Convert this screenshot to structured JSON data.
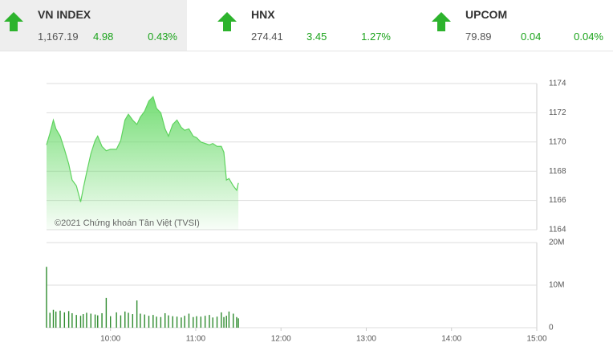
{
  "header": {
    "indices": [
      {
        "name": "VN INDEX",
        "value": "1,167.19",
        "change": "4.98",
        "percent": "0.43%"
      },
      {
        "name": "HNX",
        "value": "274.41",
        "change": "3.45",
        "percent": "1.27%"
      },
      {
        "name": "UPCOM",
        "value": "79.89",
        "change": "0.04",
        "percent": "0.04%"
      }
    ]
  },
  "chart_data": [
    {
      "type": "area",
      "color": "#5fd35f",
      "annotation": "©2021 Chứng khoán Tân Việt (TVSI)",
      "x": [
        9.25,
        9.29,
        9.33,
        9.36,
        9.41,
        9.46,
        9.51,
        9.55,
        9.6,
        9.65,
        9.68,
        9.72,
        9.77,
        9.82,
        9.85,
        9.9,
        9.95,
        10.0,
        10.07,
        10.12,
        10.17,
        10.21,
        10.26,
        10.31,
        10.35,
        10.4,
        10.45,
        10.5,
        10.54,
        10.59,
        10.64,
        10.68,
        10.73,
        10.78,
        10.83,
        10.87,
        10.92,
        10.97,
        11.01,
        11.06,
        11.11,
        11.16,
        11.2,
        11.25,
        11.3,
        11.33,
        11.36,
        11.39,
        11.44,
        11.48,
        11.5
      ],
      "values": [
        1169.8,
        1170.6,
        1171.5,
        1170.9,
        1170.4,
        1169.5,
        1168.5,
        1167.4,
        1167.0,
        1165.9,
        1166.8,
        1167.9,
        1169.2,
        1170.1,
        1170.4,
        1169.7,
        1169.4,
        1169.5,
        1169.5,
        1170.1,
        1171.5,
        1171.9,
        1171.5,
        1171.2,
        1171.7,
        1172.1,
        1172.8,
        1173.1,
        1172.3,
        1172.0,
        1170.9,
        1170.4,
        1171.2,
        1171.5,
        1171.0,
        1170.8,
        1170.9,
        1170.4,
        1170.3,
        1170.0,
        1169.9,
        1169.8,
        1169.9,
        1169.7,
        1169.7,
        1169.3,
        1167.4,
        1167.5,
        1167.0,
        1166.7,
        1167.2
      ],
      "xlim": [
        9.25,
        15
      ],
      "ylim": [
        1164,
        1174
      ],
      "yticks": [
        1164,
        1166,
        1168,
        1170,
        1172,
        1174
      ],
      "grid": true
    },
    {
      "type": "bar",
      "color": "#2e8b2e",
      "x": [
        9.25,
        9.29,
        9.33,
        9.36,
        9.41,
        9.46,
        9.51,
        9.55,
        9.6,
        9.65,
        9.68,
        9.72,
        9.77,
        9.82,
        9.85,
        9.9,
        9.95,
        10.0,
        10.07,
        10.12,
        10.17,
        10.21,
        10.26,
        10.31,
        10.35,
        10.4,
        10.45,
        10.5,
        10.54,
        10.59,
        10.64,
        10.68,
        10.73,
        10.78,
        10.83,
        10.87,
        10.92,
        10.97,
        11.01,
        11.06,
        11.11,
        11.16,
        11.2,
        11.25,
        11.3,
        11.33,
        11.36,
        11.39,
        11.44,
        11.48,
        11.5
      ],
      "values": [
        14300000,
        3500000,
        4200000,
        3800000,
        4000000,
        3600000,
        3900000,
        3400000,
        3000000,
        2800000,
        3200000,
        3500000,
        3300000,
        3100000,
        2900000,
        3400000,
        7000000,
        2700000,
        3600000,
        2900000,
        3800000,
        3500000,
        3200000,
        6400000,
        3300000,
        3100000,
        2800000,
        3000000,
        2600000,
        2500000,
        3400000,
        2900000,
        2700000,
        2600000,
        2400000,
        2800000,
        3300000,
        2500000,
        2700000,
        2600000,
        2800000,
        3000000,
        2400000,
        2600000,
        3600000,
        2500000,
        2800000,
        3800000,
        3300000,
        2500000,
        2200000
      ],
      "xlim": [
        9.25,
        15
      ],
      "ylim": [
        0,
        20000000
      ],
      "yticks": [
        0,
        {
          "value": 10000000,
          "label": "10M"
        },
        {
          "value": 20000000,
          "label": "20M"
        }
      ],
      "xticks": [
        {
          "value": 10,
          "label": "10:00"
        },
        {
          "value": 11,
          "label": "11:00"
        },
        {
          "value": 12,
          "label": "12:00"
        },
        {
          "value": 13,
          "label": "13:00"
        },
        {
          "value": 14,
          "label": "14:00"
        },
        {
          "value": 15,
          "label": "15:00"
        }
      ],
      "grid": true
    }
  ]
}
